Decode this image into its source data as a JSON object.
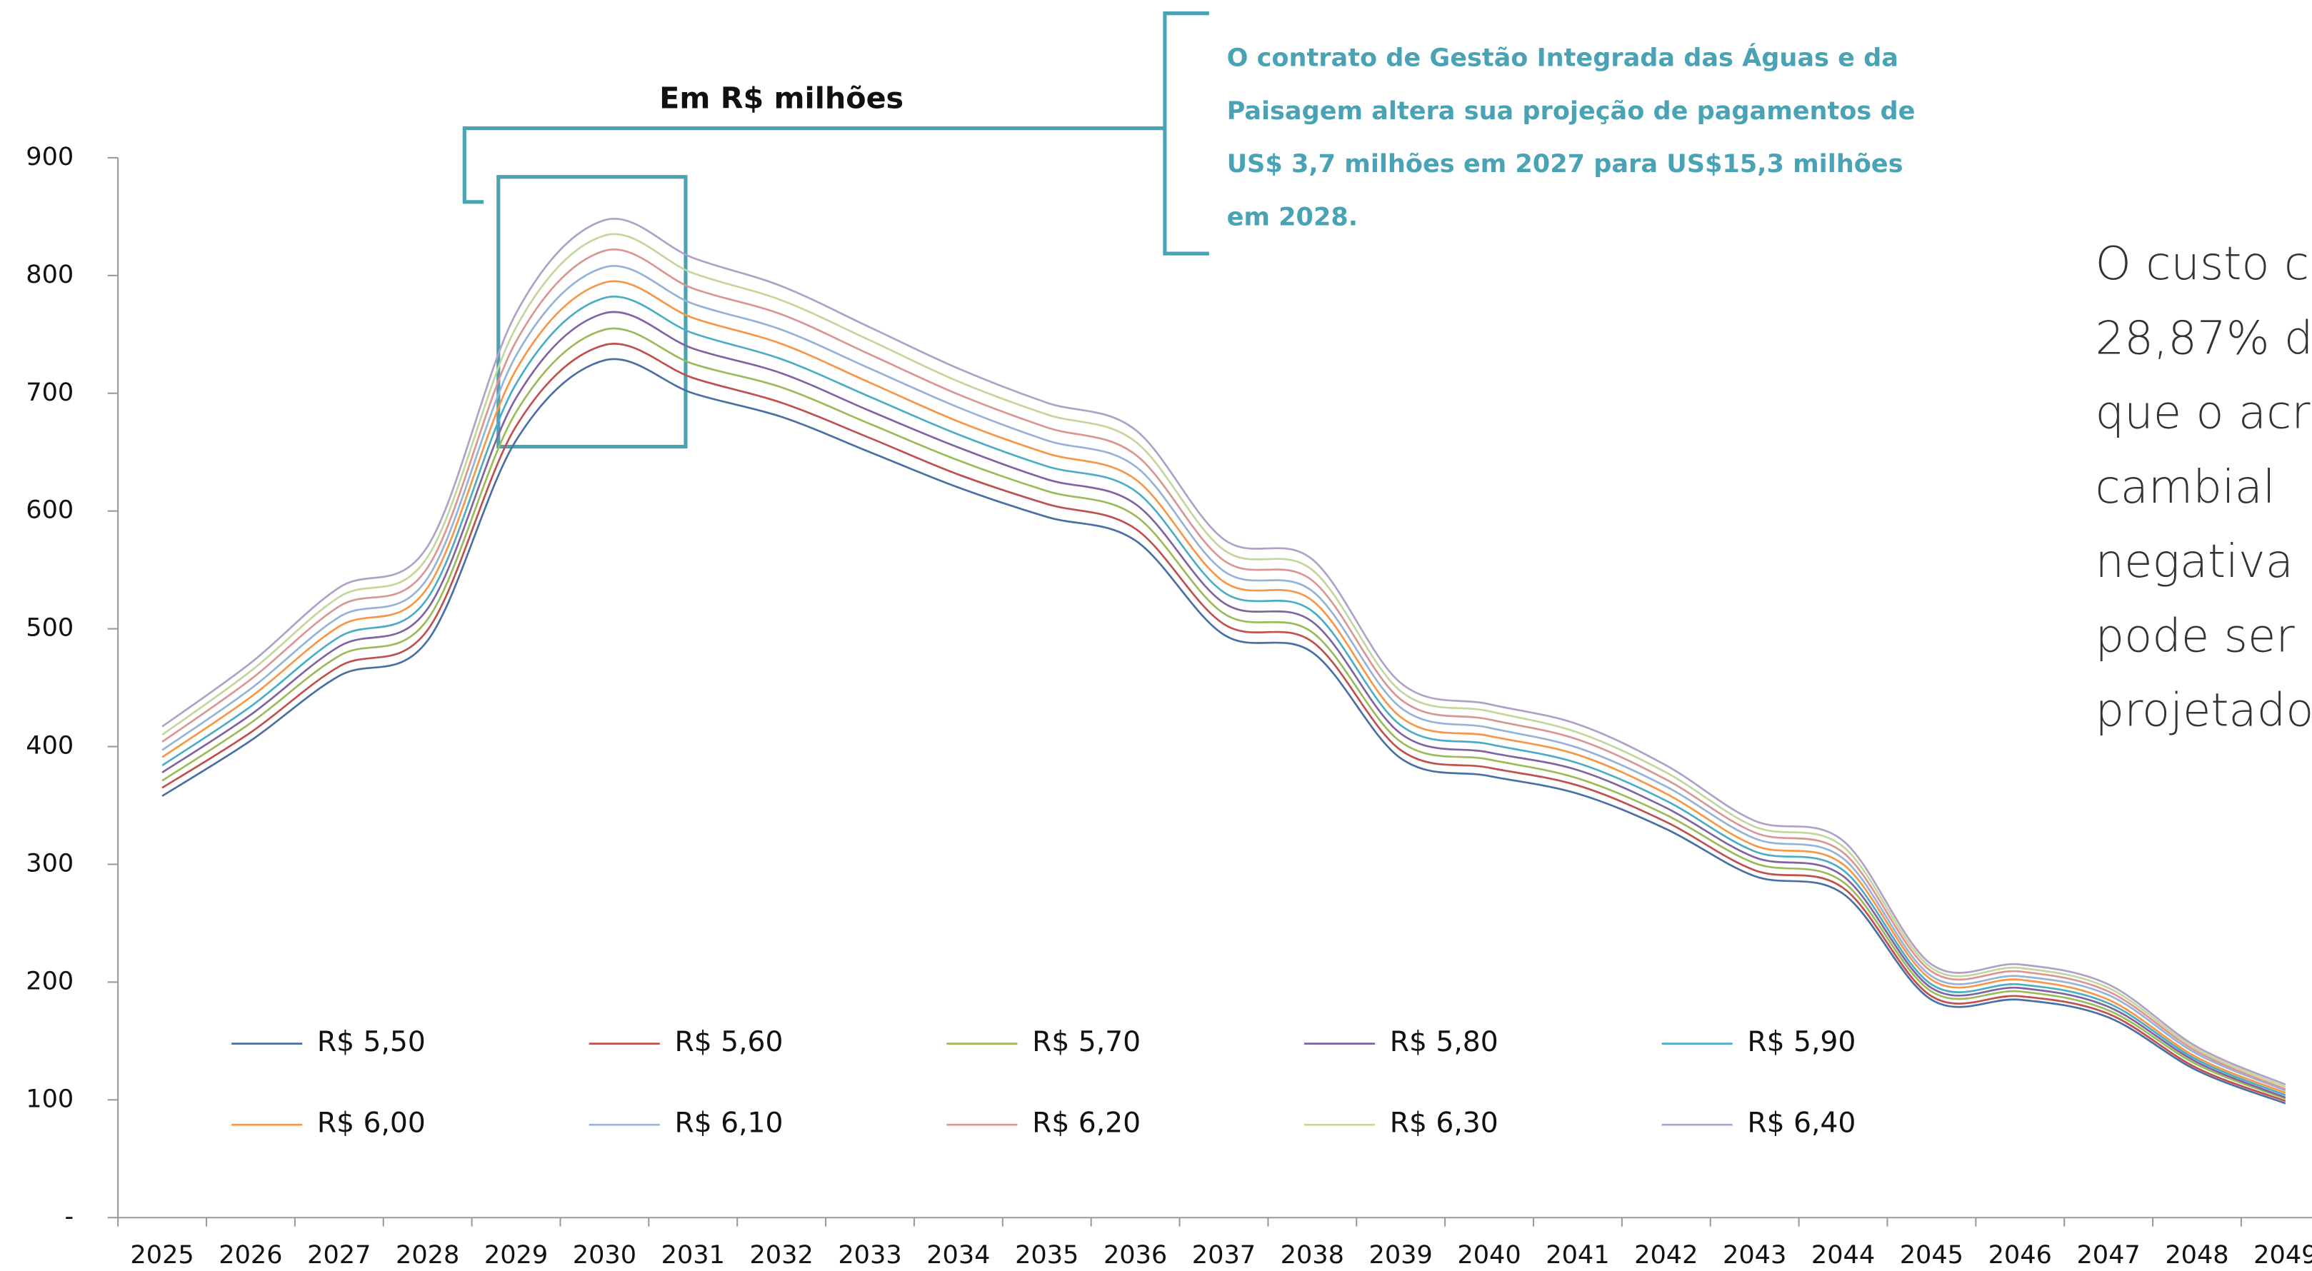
{
  "chart_data": {
    "type": "line",
    "title": "Em R$ milhões",
    "annotation": [
      "O contrato de Gestão Integrada das Águas e da",
      "Paisagem altera sua projeção de pagamentos de",
      "US$ 3,7 milhões em 2027 para US$15,3 milhões",
      "em  2028."
    ],
    "side_text": [
      "O custo c",
      "28,87% d",
      "que o acr",
      "cambial",
      "negativa",
      "pode ser",
      "projetado"
    ],
    "categories": [
      "2025",
      "2026",
      "2027",
      "2028",
      "2029",
      "2030",
      "2031",
      "2032",
      "2033",
      "2034",
      "2035",
      "2036",
      "2037",
      "2038",
      "2039",
      "2040",
      "2041",
      "2042",
      "2043",
      "2044",
      "2045",
      "2046",
      "2047",
      "2048",
      "2049"
    ],
    "ylim": [
      0,
      900
    ],
    "yticks": [
      {
        "value": 0,
        "label": "-"
      },
      100,
      200,
      300,
      400,
      500,
      600,
      700,
      800,
      900
    ],
    "grid": false,
    "series": [
      {
        "name": "R$ 5,50",
        "color": "#4a6fa5",
        "values": [
          358,
          405,
          460,
          490,
          660,
          728,
          700,
          680,
          650,
          620,
          595,
          575,
          495,
          480,
          390,
          375,
          360,
          330,
          290,
          275,
          185,
          185,
          170,
          125,
          97
        ]
      },
      {
        "name": "R$ 5,60",
        "color": "#c0504d",
        "values": [
          365,
          412,
          468,
          499,
          672,
          741,
          713,
          692,
          662,
          631,
          606,
          585,
          504,
          489,
          397,
          382,
          367,
          336,
          295,
          280,
          188,
          188,
          173,
          127,
          99
        ]
      },
      {
        "name": "R$ 5,70",
        "color": "#9bbb59",
        "values": [
          371,
          420,
          477,
          508,
          684,
          754,
          725,
          705,
          674,
          643,
          617,
          596,
          513,
          497,
          404,
          389,
          373,
          342,
          301,
          285,
          192,
          192,
          176,
          130,
          101
        ]
      },
      {
        "name": "R$ 5,80",
        "color": "#8064a2",
        "values": [
          378,
          427,
          485,
          517,
          696,
          768,
          738,
          717,
          685,
          654,
          627,
          606,
          522,
          506,
          411,
          395,
          380,
          348,
          306,
          290,
          195,
          195,
          179,
          132,
          102
        ]
      },
      {
        "name": "R$ 5,90",
        "color": "#4bacc6",
        "values": [
          384,
          434,
          493,
          526,
          708,
          781,
          751,
          729,
          697,
          665,
          638,
          617,
          531,
          515,
          418,
          402,
          386,
          354,
          311,
          295,
          198,
          198,
          182,
          134,
          104
        ]
      },
      {
        "name": "R$ 6,00",
        "color": "#f79646",
        "values": [
          391,
          442,
          502,
          535,
          720,
          794,
          764,
          742,
          709,
          676,
          649,
          627,
          540,
          524,
          425,
          409,
          393,
          360,
          316,
          300,
          202,
          202,
          185,
          136,
          106
        ]
      },
      {
        "name": "R$ 6,10",
        "color": "#95b3d7",
        "values": [
          397,
          449,
          510,
          543,
          732,
          807,
          776,
          754,
          721,
          688,
          660,
          638,
          549,
          532,
          433,
          416,
          399,
          366,
          322,
          305,
          205,
          205,
          189,
          139,
          108
        ]
      },
      {
        "name": "R$ 6,20",
        "color": "#da9694",
        "values": [
          404,
          457,
          519,
          552,
          744,
          821,
          789,
          767,
          733,
          699,
          671,
          648,
          558,
          541,
          440,
          423,
          406,
          372,
          327,
          310,
          209,
          209,
          192,
          141,
          109
        ]
      },
      {
        "name": "R$ 6,30",
        "color": "#c3d69b",
        "values": [
          410,
          464,
          527,
          561,
          756,
          834,
          802,
          779,
          745,
          710,
          682,
          659,
          567,
          550,
          447,
          430,
          412,
          378,
          332,
          315,
          212,
          212,
          195,
          143,
          111
        ]
      },
      {
        "name": "R$ 6,40",
        "color": "#b1a0c7",
        "values": [
          417,
          471,
          535,
          570,
          768,
          847,
          815,
          791,
          756,
          721,
          692,
          669,
          576,
          559,
          454,
          436,
          419,
          384,
          337,
          320,
          215,
          215,
          198,
          145,
          113
        ]
      }
    ]
  }
}
